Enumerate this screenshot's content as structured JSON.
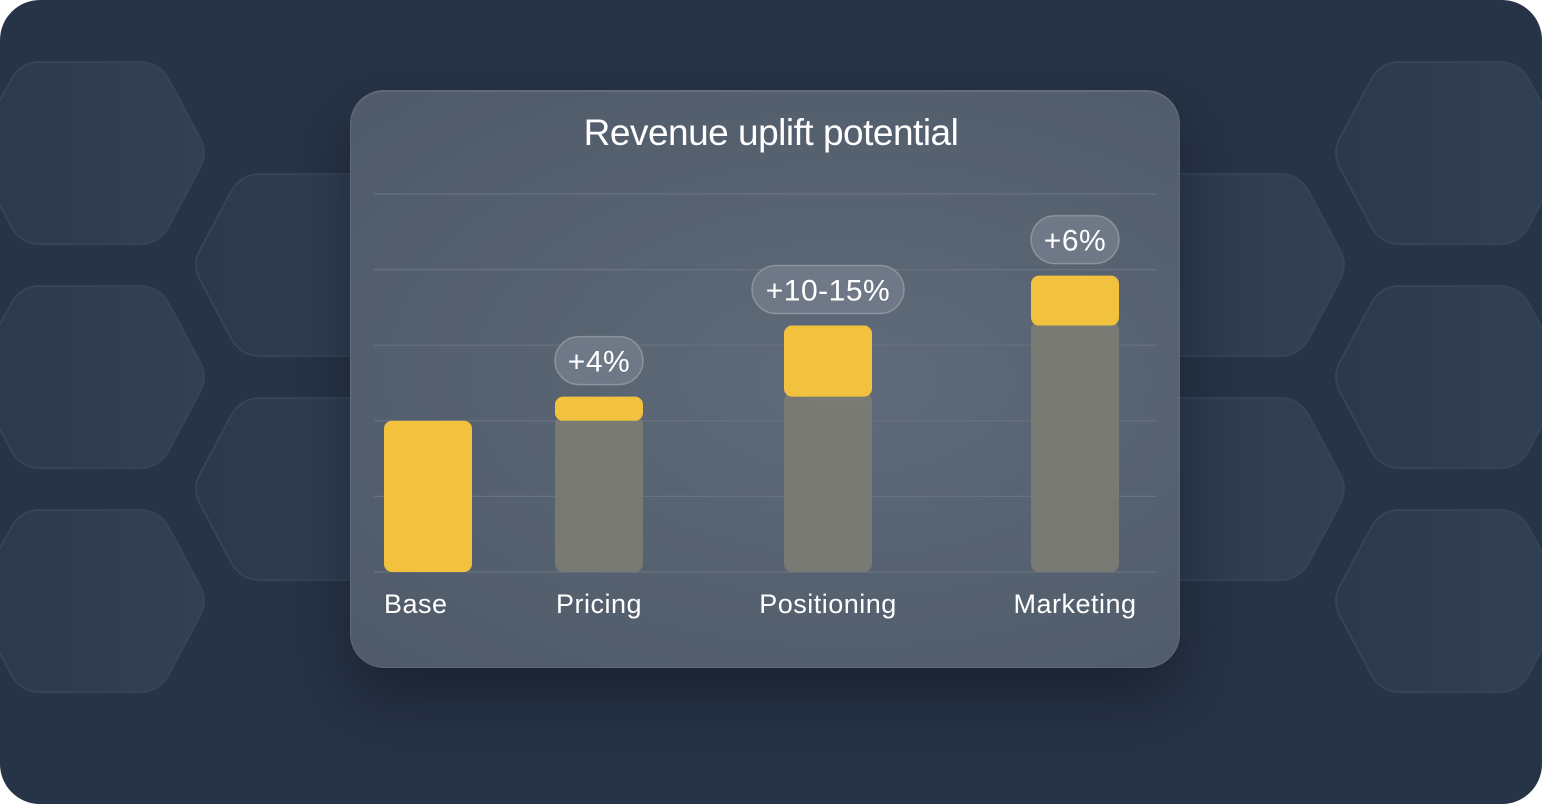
{
  "chart_data": {
    "type": "bar",
    "title": "Revenue uplift potential",
    "xlabel": "",
    "ylabel": "",
    "categories": [
      "Base",
      "Pricing",
      "Positioning",
      "Marketing"
    ],
    "series": [
      {
        "values": [
          100,
          116,
          163,
          196
        ]
      },
      {
        "values": [
          0,
          16,
          47,
          33
        ]
      }
    ],
    "annotations": [
      "",
      "+4%",
      "+10-15%",
      "+6%"
    ],
    "ylim": [
      0,
      250
    ],
    "grid": true,
    "legend": "none",
    "colors": {
      "bar": "#F2C13D",
      "stack": "#7E7E73",
      "label_pill_bg": "#6E7886",
      "text": "#FFFFFF",
      "grid": "#6A7583"
    }
  }
}
